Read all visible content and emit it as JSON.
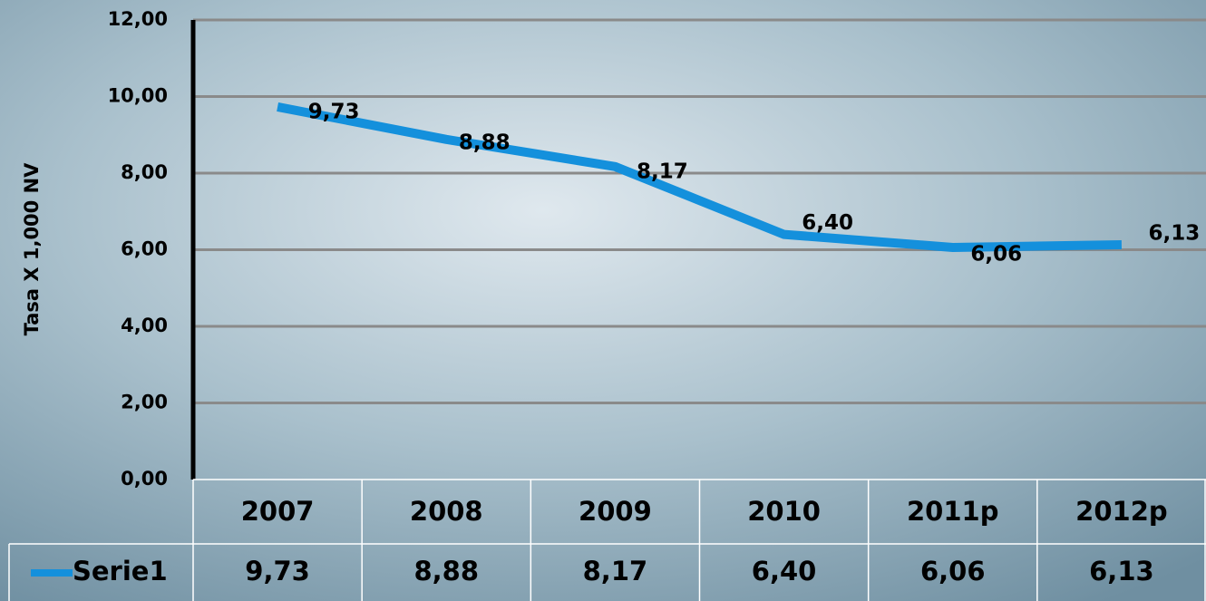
{
  "chart_data": {
    "type": "line",
    "y_label": "Tasa X 1,000 NV",
    "categories": [
      "2007",
      "2008",
      "2009",
      "2010",
      "2011p",
      "2012p"
    ],
    "series": [
      {
        "name": "Serie1",
        "color": "#1490dc",
        "values": [
          9.73,
          8.88,
          8.17,
          6.4,
          6.06,
          6.13
        ],
        "value_labels": [
          "9,73",
          "8,88",
          "8,17",
          "6,40",
          "6,06",
          "6,13"
        ]
      }
    ],
    "ylim": [
      0,
      12
    ],
    "yticks": [
      {
        "value": 0,
        "label": "0,00"
      },
      {
        "value": 2,
        "label": "2,00"
      },
      {
        "value": 4,
        "label": "4,00"
      },
      {
        "value": 6,
        "label": "6,00"
      },
      {
        "value": 8,
        "label": "8,00"
      },
      {
        "value": 10,
        "label": "10,00"
      },
      {
        "value": 12,
        "label": "12,00"
      }
    ],
    "grid": true
  }
}
